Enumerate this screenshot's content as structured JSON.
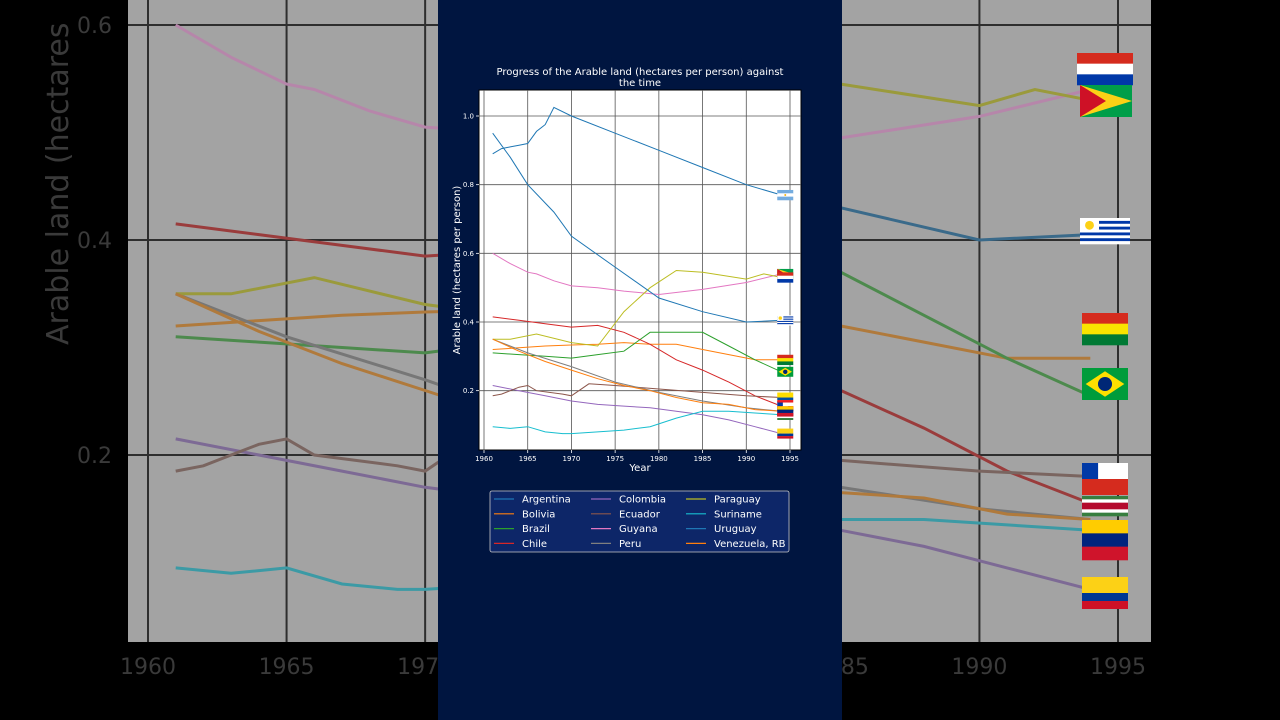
{
  "colors": {
    "panel": "#001540",
    "legend_bg": "#0d2668",
    "outer_bg": "#000000"
  },
  "chart_data": {
    "type": "line",
    "title": "Progress of the Arable land (hectares per person) against the time",
    "title_lines": [
      "Progress of the Arable land (hectares per person) against",
      "the time"
    ],
    "xlabel": "Year",
    "ylabel": "Arable land (hectares per person)",
    "xlim": [
      1960,
      1995
    ],
    "ylim": [
      0.0,
      1.08
    ],
    "x_ticks": [
      1960,
      1965,
      1970,
      1975,
      1980,
      1985,
      1990,
      1995
    ],
    "y_ticks": [
      0.2,
      0.4,
      0.6,
      0.8,
      1.0
    ],
    "background_y_ticks": [
      0.2,
      0.4,
      0.6
    ],
    "background_ylabel": "Arable land (hectares",
    "grid": true,
    "legend_position": "below",
    "legend_columns": 3,
    "series": [
      {
        "name": "Argentina",
        "color": "#1f77b4",
        "flag": "argentina",
        "x": [
          1961,
          1962,
          1963,
          1964,
          1965,
          1966,
          1967,
          1968,
          1970,
          1975,
          1980,
          1985,
          1990,
          1994
        ],
        "values": [
          0.89,
          0.905,
          0.91,
          0.915,
          0.92,
          0.955,
          0.975,
          1.025,
          1.0,
          0.95,
          0.9,
          0.85,
          0.8,
          0.77
        ]
      },
      {
        "name": "Bolivia",
        "color": "#ff7f0e",
        "flag": "bolivia",
        "x": [
          1961,
          1964,
          1967,
          1970,
          1973,
          1976,
          1979,
          1982,
          1985,
          1988,
          1991,
          1994
        ],
        "values": [
          0.32,
          0.325,
          0.33,
          0.333,
          0.335,
          0.34,
          0.335,
          0.335,
          0.32,
          0.305,
          0.29,
          0.29
        ]
      },
      {
        "name": "Brazil",
        "color": "#2ca02c",
        "flag": "brazil",
        "x": [
          1961,
          1964,
          1967,
          1970,
          1973,
          1976,
          1979,
          1982,
          1985,
          1988,
          1991,
          1994
        ],
        "values": [
          0.31,
          0.305,
          0.3,
          0.295,
          0.305,
          0.315,
          0.37,
          0.37,
          0.37,
          0.33,
          0.29,
          0.255
        ]
      },
      {
        "name": "Chile",
        "color": "#d62728",
        "flag": "chile",
        "x": [
          1961,
          1964,
          1967,
          1970,
          1973,
          1976,
          1979,
          1982,
          1985,
          1988,
          1991,
          1994
        ],
        "values": [
          0.415,
          0.405,
          0.395,
          0.385,
          0.39,
          0.37,
          0.335,
          0.29,
          0.26,
          0.225,
          0.185,
          0.155
        ]
      },
      {
        "name": "Colombia",
        "color": "#9467bd",
        "flag": "colombia",
        "x": [
          1961,
          1964,
          1967,
          1970,
          1973,
          1976,
          1979,
          1982,
          1985,
          1988,
          1991,
          1994
        ],
        "values": [
          0.215,
          0.2,
          0.185,
          0.17,
          0.16,
          0.155,
          0.15,
          0.14,
          0.13,
          0.115,
          0.095,
          0.075
        ]
      },
      {
        "name": "Ecuador",
        "color": "#8c564b",
        "flag": "ecuador",
        "x": [
          1961,
          1962,
          1963,
          1964,
          1965,
          1966,
          1969,
          1970,
          1972,
          1975,
          1980,
          1985,
          1990,
          1994
        ],
        "values": [
          0.185,
          0.19,
          0.2,
          0.21,
          0.215,
          0.2,
          0.19,
          0.185,
          0.22,
          0.215,
          0.205,
          0.195,
          0.185,
          0.18
        ]
      },
      {
        "name": "Guyana",
        "color": "#e377c2",
        "flag": "guyana",
        "x": [
          1961,
          1963,
          1965,
          1966,
          1968,
          1970,
          1973,
          1976,
          1980,
          1985,
          1990,
          1994
        ],
        "values": [
          0.6,
          0.57,
          0.545,
          0.54,
          0.52,
          0.505,
          0.5,
          0.49,
          0.48,
          0.495,
          0.515,
          0.54
        ]
      },
      {
        "name": "Peru",
        "color": "#7f7f7f",
        "flag": "peru",
        "x": [
          1961,
          1965,
          1970,
          1975,
          1980,
          1985,
          1990,
          1994
        ],
        "values": [
          0.35,
          0.31,
          0.27,
          0.225,
          0.195,
          0.17,
          0.15,
          0.14
        ]
      },
      {
        "name": "Paraguay",
        "color": "#bcbd22",
        "flag": "paraguay",
        "x": [
          1961,
          1963,
          1966,
          1970,
          1973,
          1976,
          1979,
          1982,
          1985,
          1990,
          1992,
          1994
        ],
        "values": [
          0.35,
          0.35,
          0.365,
          0.34,
          0.33,
          0.43,
          0.5,
          0.55,
          0.545,
          0.525,
          0.54,
          0.53
        ]
      },
      {
        "name": "Suriname",
        "color": "#17becf",
        "flag": "suriname",
        "x": [
          1961,
          1963,
          1965,
          1967,
          1969,
          1970,
          1973,
          1976,
          1979,
          1982,
          1985,
          1988,
          1991,
          1994
        ],
        "values": [
          0.095,
          0.09,
          0.095,
          0.08,
          0.075,
          0.075,
          0.08,
          0.085,
          0.095,
          0.12,
          0.14,
          0.14,
          0.135,
          0.13
        ]
      },
      {
        "name": "Uruguay",
        "color": "#1f77b4",
        "flag": "uruguay",
        "x": [
          1961,
          1963,
          1965,
          1968,
          1970,
          1975,
          1980,
          1985,
          1990,
          1994
        ],
        "values": [
          0.95,
          0.88,
          0.8,
          0.72,
          0.65,
          0.56,
          0.47,
          0.43,
          0.4,
          0.405
        ]
      },
      {
        "name": "Venezuela, RB",
        "color": "#ff7f0e",
        "flag": "venezuela",
        "x": [
          1961,
          1964,
          1967,
          1970,
          1973,
          1976,
          1979,
          1982,
          1985,
          1988,
          1991,
          1994
        ],
        "values": [
          0.35,
          0.315,
          0.285,
          0.26,
          0.235,
          0.215,
          0.2,
          0.18,
          0.165,
          0.16,
          0.145,
          0.14
        ]
      }
    ]
  }
}
